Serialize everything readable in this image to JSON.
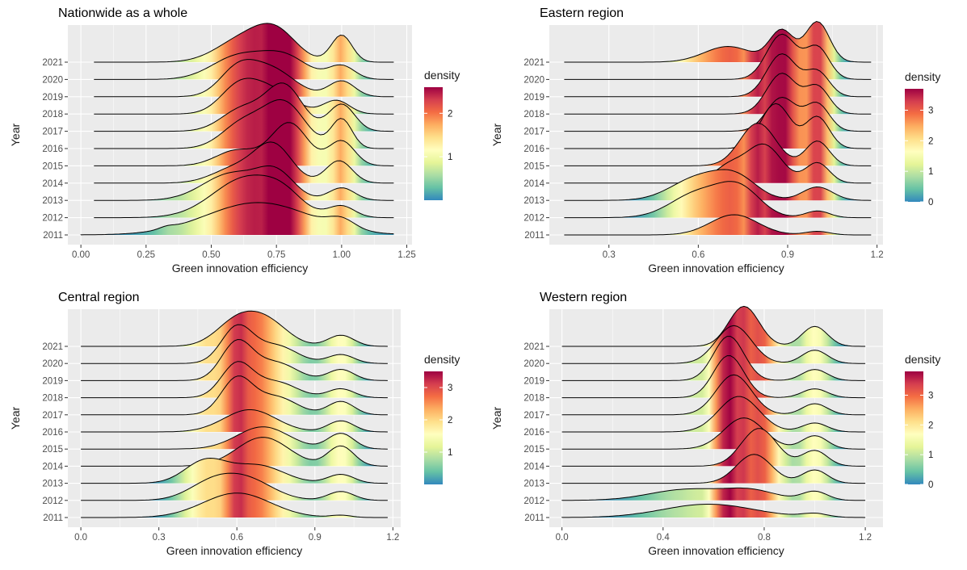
{
  "chart_data": [
    {
      "type": "ridgeline",
      "title": "Nationwide as a whole",
      "xlabel": "Green innovation efficiency",
      "ylabel": "Year",
      "categories": [
        "2011",
        "2012",
        "2013",
        "2014",
        "2015",
        "2016",
        "2017",
        "2018",
        "2019",
        "2020",
        "2021"
      ],
      "xlim": [
        -0.05,
        1.27
      ],
      "xticks": [
        0,
        0.25,
        0.5,
        0.75,
        1.0,
        1.25
      ],
      "xtick_labels": [
        "0.00",
        "0.25",
        "0.50",
        "0.75",
        "1.00",
        "1.25"
      ],
      "density_legend": {
        "title": "density",
        "ticks": [
          1,
          2
        ],
        "range": [
          0,
          2.6
        ]
      },
      "grid": true,
      "series": [
        {
          "year": "2011",
          "tails": [
            0.0,
            1.2
          ],
          "peaks": [
            [
              0.33,
              0.03,
              0.05
            ],
            [
              0.68,
              0.2,
              0.72
            ],
            [
              1.0,
              0.05,
              0.2
            ]
          ]
        },
        {
          "year": "2012",
          "tails": [
            0.05,
            1.2
          ],
          "peaks": [
            [
              0.64,
              0.13,
              0.9
            ],
            [
              0.78,
              0.07,
              0.25
            ],
            [
              1.0,
              0.05,
              0.25
            ]
          ]
        },
        {
          "year": "2013",
          "tails": [
            0.05,
            1.2
          ],
          "peaks": [
            [
              0.58,
              0.11,
              0.6
            ],
            [
              0.75,
              0.07,
              0.55
            ],
            [
              1.0,
              0.05,
              0.28
            ]
          ]
        },
        {
          "year": "2014",
          "tails": [
            0.05,
            1.2
          ],
          "peaks": [
            [
              0.6,
              0.09,
              0.35
            ],
            [
              0.74,
              0.07,
              0.8
            ],
            [
              0.99,
              0.05,
              0.5
            ]
          ]
        },
        {
          "year": "2015",
          "tails": [
            0.05,
            1.2
          ],
          "peaks": [
            [
              0.6,
              0.08,
              0.35
            ],
            [
              0.8,
              0.07,
              0.95
            ],
            [
              1.0,
              0.05,
              0.55
            ]
          ]
        },
        {
          "year": "2016",
          "tails": [
            0.05,
            1.2
          ],
          "peaks": [
            [
              0.62,
              0.08,
              0.55
            ],
            [
              0.78,
              0.08,
              1.0
            ],
            [
              1.0,
              0.04,
              0.65
            ]
          ]
        },
        {
          "year": "2017",
          "tails": [
            0.05,
            1.2
          ],
          "peaks": [
            [
              0.62,
              0.08,
              0.5
            ],
            [
              0.78,
              0.07,
              1.0
            ],
            [
              1.0,
              0.05,
              0.6
            ]
          ]
        },
        {
          "year": "2018",
          "tails": [
            0.05,
            1.2
          ],
          "peaks": [
            [
              0.6,
              0.07,
              0.5
            ],
            [
              0.72,
              0.09,
              0.55
            ],
            [
              0.98,
              0.05,
              0.3
            ]
          ]
        },
        {
          "year": "2019",
          "tails": [
            0.05,
            1.2
          ],
          "peaks": [
            [
              0.6,
              0.07,
              0.55
            ],
            [
              0.73,
              0.09,
              0.6
            ],
            [
              1.0,
              0.05,
              0.35
            ]
          ]
        },
        {
          "year": "2020",
          "tails": [
            0.05,
            1.2
          ],
          "peaks": [
            [
              0.6,
              0.1,
              0.5
            ],
            [
              0.78,
              0.09,
              0.5
            ],
            [
              1.0,
              0.05,
              0.3
            ]
          ]
        },
        {
          "year": "2021",
          "tails": [
            0.05,
            1.2
          ],
          "peaks": [
            [
              0.62,
              0.1,
              0.5
            ],
            [
              0.75,
              0.08,
              0.6
            ],
            [
              1.0,
              0.04,
              0.6
            ]
          ]
        }
      ]
    },
    {
      "type": "ridgeline",
      "title": "Eastern region",
      "xlabel": "Green innovation efficiency",
      "ylabel": "Year",
      "categories": [
        "2011",
        "2012",
        "2013",
        "2014",
        "2015",
        "2016",
        "2017",
        "2018",
        "2019",
        "2020",
        "2021"
      ],
      "xlim": [
        0.1,
        1.22
      ],
      "xticks": [
        0.3,
        0.6,
        0.9,
        1.2
      ],
      "xtick_labels": [
        "0.3",
        "0.6",
        "0.9",
        "1.2"
      ],
      "density_legend": {
        "title": "density",
        "ticks": [
          0,
          1,
          2,
          3
        ],
        "range": [
          0,
          3.7
        ]
      },
      "grid": true,
      "series": [
        {
          "year": "2011",
          "tails": [
            0.15,
            1.18
          ],
          "peaks": [
            [
              0.72,
              0.08,
              0.45
            ],
            [
              1.0,
              0.04,
              0.08
            ]
          ]
        },
        {
          "year": "2012",
          "tails": [
            0.15,
            1.18
          ],
          "peaks": [
            [
              0.6,
              0.09,
              0.55
            ],
            [
              0.74,
              0.07,
              0.6
            ],
            [
              1.0,
              0.04,
              0.15
            ]
          ]
        },
        {
          "year": "2013",
          "tails": [
            0.15,
            1.18
          ],
          "peaks": [
            [
              0.6,
              0.09,
              0.5
            ],
            [
              0.73,
              0.07,
              0.45
            ],
            [
              1.0,
              0.05,
              0.3
            ]
          ]
        },
        {
          "year": "2014",
          "tails": [
            0.15,
            1.18
          ],
          "peaks": [
            [
              0.7,
              0.05,
              0.35
            ],
            [
              0.82,
              0.06,
              0.85
            ],
            [
              1.0,
              0.04,
              0.45
            ]
          ]
        },
        {
          "year": "2015",
          "tails": [
            0.15,
            1.18
          ],
          "peaks": [
            [
              0.8,
              0.06,
              0.95
            ],
            [
              1.0,
              0.04,
              0.55
            ]
          ]
        },
        {
          "year": "2016",
          "tails": [
            0.15,
            1.18
          ],
          "peaks": [
            [
              0.86,
              0.05,
              1.0
            ],
            [
              1.0,
              0.04,
              0.7
            ]
          ]
        },
        {
          "year": "2017",
          "tails": [
            0.15,
            1.18
          ],
          "peaks": [
            [
              0.88,
              0.05,
              0.75
            ],
            [
              1.0,
              0.04,
              0.6
            ]
          ]
        },
        {
          "year": "2018",
          "tails": [
            0.15,
            1.18
          ],
          "peaks": [
            [
              0.88,
              0.05,
              0.9
            ],
            [
              1.0,
              0.04,
              0.6
            ]
          ]
        },
        {
          "year": "2019",
          "tails": [
            0.15,
            1.18
          ],
          "peaks": [
            [
              0.88,
              0.05,
              0.95
            ],
            [
              1.0,
              0.04,
              0.55
            ]
          ]
        },
        {
          "year": "2020",
          "tails": [
            0.15,
            1.18
          ],
          "peaks": [
            [
              0.88,
              0.05,
              1.0
            ],
            [
              1.0,
              0.04,
              0.7
            ]
          ]
        },
        {
          "year": "2021",
          "tails": [
            0.15,
            1.18
          ],
          "peaks": [
            [
              0.7,
              0.08,
              0.35
            ],
            [
              0.88,
              0.04,
              0.7
            ],
            [
              1.0,
              0.04,
              0.9
            ]
          ]
        }
      ]
    },
    {
      "type": "ridgeline",
      "title": "Central region",
      "xlabel": "Green innovation efficiency",
      "ylabel": "Year",
      "categories": [
        "2011",
        "2012",
        "2013",
        "2014",
        "2015",
        "2016",
        "2017",
        "2018",
        "2019",
        "2020",
        "2021"
      ],
      "xlim": [
        -0.05,
        1.23
      ],
      "xticks": [
        0.0,
        0.3,
        0.6,
        0.9,
        1.2
      ],
      "xtick_labels": [
        "0.0",
        "0.3",
        "0.6",
        "0.9",
        "1.2"
      ],
      "density_legend": {
        "title": "density",
        "ticks": [
          1,
          2,
          3
        ],
        "range": [
          0,
          3.5
        ]
      },
      "grid": true,
      "series": [
        {
          "year": "2011",
          "tails": [
            0.0,
            1.18
          ],
          "peaks": [
            [
              0.6,
              0.13,
              0.55
            ],
            [
              1.0,
              0.04,
              0.05
            ]
          ]
        },
        {
          "year": "2012",
          "tails": [
            0.0,
            1.18
          ],
          "peaks": [
            [
              0.5,
              0.09,
              0.35
            ],
            [
              0.64,
              0.1,
              0.45
            ],
            [
              1.0,
              0.05,
              0.2
            ]
          ]
        },
        {
          "year": "2013",
          "tails": [
            0.0,
            1.18
          ],
          "peaks": [
            [
              0.48,
              0.08,
              0.5
            ],
            [
              0.68,
              0.1,
              0.4
            ],
            [
              1.0,
              0.05,
              0.2
            ]
          ]
        },
        {
          "year": "2014",
          "tails": [
            0.0,
            1.18
          ],
          "peaks": [
            [
              0.7,
              0.1,
              0.65
            ],
            [
              1.0,
              0.05,
              0.45
            ]
          ]
        },
        {
          "year": "2015",
          "tails": [
            0.0,
            1.18
          ],
          "peaks": [
            [
              0.7,
              0.1,
              0.5
            ],
            [
              1.0,
              0.05,
              0.35
            ]
          ]
        },
        {
          "year": "2016",
          "tails": [
            0.0,
            1.18
          ],
          "peaks": [
            [
              0.65,
              0.1,
              0.5
            ],
            [
              1.0,
              0.05,
              0.25
            ]
          ]
        },
        {
          "year": "2017",
          "tails": [
            0.0,
            1.18
          ],
          "peaks": [
            [
              0.6,
              0.06,
              0.8
            ],
            [
              0.75,
              0.08,
              0.4
            ],
            [
              1.0,
              0.05,
              0.3
            ]
          ]
        },
        {
          "year": "2018",
          "tails": [
            0.0,
            1.18
          ],
          "peaks": [
            [
              0.6,
              0.06,
              0.75
            ],
            [
              0.75,
              0.08,
              0.35
            ],
            [
              1.0,
              0.05,
              0.2
            ]
          ]
        },
        {
          "year": "2019",
          "tails": [
            0.0,
            1.18
          ],
          "peaks": [
            [
              0.6,
              0.06,
              0.85
            ],
            [
              0.75,
              0.08,
              0.4
            ],
            [
              1.0,
              0.05,
              0.25
            ]
          ]
        },
        {
          "year": "2020",
          "tails": [
            0.0,
            1.18
          ],
          "peaks": [
            [
              0.6,
              0.06,
              0.8
            ],
            [
              0.75,
              0.08,
              0.4
            ],
            [
              1.0,
              0.05,
              0.2
            ]
          ]
        },
        {
          "year": "2021",
          "tails": [
            0.0,
            1.18
          ],
          "peaks": [
            [
              0.6,
              0.08,
              0.55
            ],
            [
              0.72,
              0.08,
              0.5
            ],
            [
              1.0,
              0.05,
              0.25
            ]
          ]
        }
      ]
    },
    {
      "type": "ridgeline",
      "title": "Western region",
      "xlabel": "Green innovation efficiency",
      "ylabel": "Year",
      "categories": [
        "2011",
        "2012",
        "2013",
        "2014",
        "2015",
        "2016",
        "2017",
        "2018",
        "2019",
        "2020",
        "2021"
      ],
      "xlim": [
        -0.05,
        1.27
      ],
      "xticks": [
        0.0,
        0.4,
        0.8,
        1.2
      ],
      "xtick_labels": [
        "0.0",
        "0.4",
        "0.8",
        "1.2"
      ],
      "density_legend": {
        "title": "density",
        "ticks": [
          0,
          1,
          2,
          3
        ],
        "range": [
          0,
          3.8
        ]
      },
      "grid": true,
      "series": [
        {
          "year": "2011",
          "tails": [
            0.0,
            1.2
          ],
          "peaks": [
            [
              0.58,
              0.18,
              0.3
            ],
            [
              1.0,
              0.05,
              0.08
            ]
          ]
        },
        {
          "year": "2012",
          "tails": [
            0.0,
            1.2
          ],
          "peaks": [
            [
              0.5,
              0.15,
              0.25
            ],
            [
              0.75,
              0.1,
              0.2
            ],
            [
              1.0,
              0.05,
              0.2
            ]
          ]
        },
        {
          "year": "2013",
          "tails": [
            0.0,
            1.2
          ],
          "peaks": [
            [
              0.76,
              0.07,
              0.65
            ],
            [
              1.0,
              0.05,
              0.3
            ]
          ]
        },
        {
          "year": "2014",
          "tails": [
            0.0,
            1.2
          ],
          "peaks": [
            [
              0.78,
              0.07,
              0.85
            ],
            [
              1.0,
              0.05,
              0.35
            ]
          ]
        },
        {
          "year": "2015",
          "tails": [
            0.0,
            1.2
          ],
          "peaks": [
            [
              0.72,
              0.08,
              0.7
            ],
            [
              1.0,
              0.05,
              0.3
            ]
          ]
        },
        {
          "year": "2016",
          "tails": [
            0.0,
            1.2
          ],
          "peaks": [
            [
              0.7,
              0.08,
              0.8
            ],
            [
              1.0,
              0.05,
              0.2
            ]
          ]
        },
        {
          "year": "2017",
          "tails": [
            0.0,
            1.2
          ],
          "peaks": [
            [
              0.68,
              0.07,
              0.9
            ],
            [
              1.0,
              0.05,
              0.25
            ]
          ]
        },
        {
          "year": "2018",
          "tails": [
            0.0,
            1.2
          ],
          "peaks": [
            [
              0.66,
              0.06,
              0.95
            ],
            [
              1.0,
              0.05,
              0.2
            ]
          ]
        },
        {
          "year": "2019",
          "tails": [
            0.0,
            1.2
          ],
          "peaks": [
            [
              0.66,
              0.06,
              1.0
            ],
            [
              1.0,
              0.05,
              0.25
            ]
          ]
        },
        {
          "year": "2020",
          "tails": [
            0.0,
            1.2
          ],
          "peaks": [
            [
              0.68,
              0.07,
              0.85
            ],
            [
              1.0,
              0.05,
              0.3
            ]
          ]
        },
        {
          "year": "2021",
          "tails": [
            0.0,
            1.2
          ],
          "peaks": [
            [
              0.72,
              0.06,
              0.9
            ],
            [
              1.0,
              0.05,
              0.45
            ]
          ]
        }
      ]
    }
  ],
  "colors": {
    "panel_bg": "#EBEBEB",
    "grid": "#FFFFFF",
    "palette": [
      "#3288BD",
      "#66C2A5",
      "#ABDDA4",
      "#E6F598",
      "#FFFFBF",
      "#FEE08B",
      "#FDAE61",
      "#F46D43",
      "#D53E4F",
      "#9E0142"
    ]
  }
}
